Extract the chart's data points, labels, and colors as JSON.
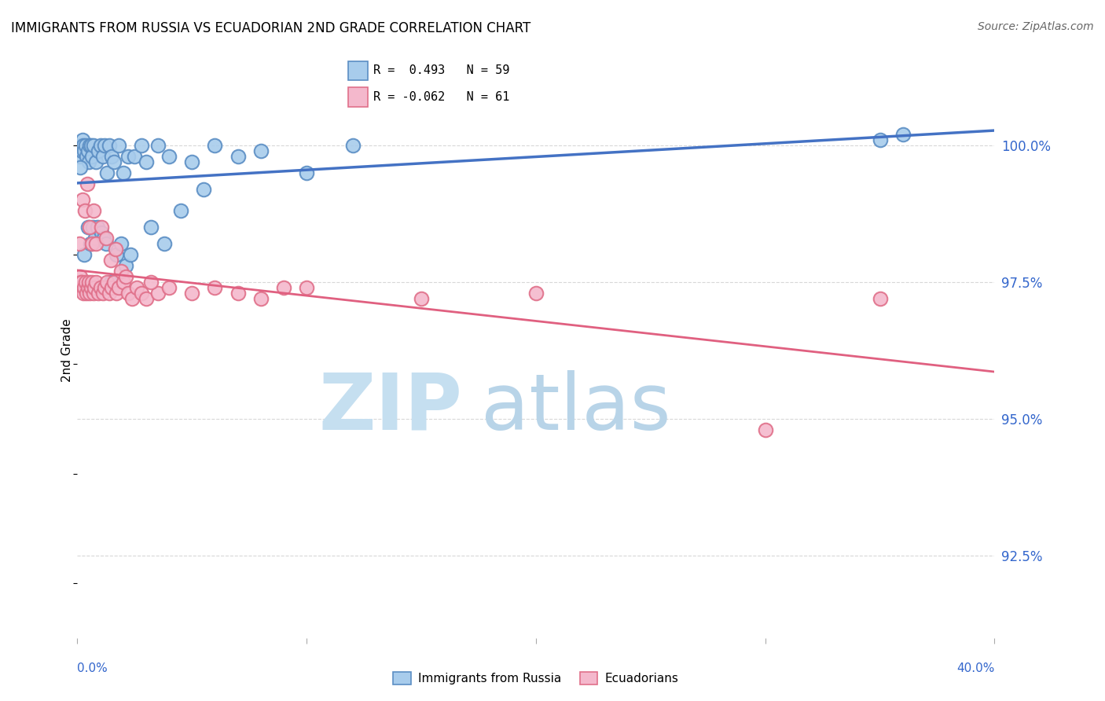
{
  "title": "IMMIGRANTS FROM RUSSIA VS ECUADORIAN 2ND GRADE CORRELATION CHART",
  "source": "Source: ZipAtlas.com",
  "ylabel": "2nd Grade",
  "xlim": [
    0.0,
    40.0
  ],
  "ylim": [
    91.0,
    101.5
  ],
  "yticks": [
    92.5,
    95.0,
    97.5,
    100.0
  ],
  "ytick_labels": [
    "92.5%",
    "95.0%",
    "97.5%",
    "100.0%"
  ],
  "russia_color": "#a8ccec",
  "ecuador_color": "#f4b8cc",
  "russia_edge_color": "#5b8ec4",
  "ecuador_edge_color": "#e0708a",
  "russia_line_color": "#4472c4",
  "ecuador_line_color": "#e06080",
  "legend_r_russia": "R =  0.493",
  "legend_n_russia": "N = 59",
  "legend_r_ecuador": "R = -0.062",
  "legend_n_ecuador": "N = 61",
  "russia_x": [
    0.1,
    0.15,
    0.18,
    0.2,
    0.22,
    0.25,
    0.3,
    0.35,
    0.4,
    0.45,
    0.5,
    0.55,
    0.6,
    0.65,
    0.7,
    0.8,
    0.9,
    1.0,
    1.1,
    1.2,
    1.3,
    1.4,
    1.5,
    1.6,
    1.8,
    2.0,
    2.2,
    2.5,
    2.8,
    3.0,
    3.5,
    4.0,
    5.0,
    6.0,
    7.0,
    8.0,
    12.0,
    35.0,
    36.0,
    0.12,
    0.28,
    0.48,
    0.58,
    0.68,
    0.78,
    0.88,
    1.05,
    1.15,
    1.25,
    1.45,
    1.7,
    1.9,
    2.1,
    2.3,
    3.2,
    3.8,
    4.5,
    5.5,
    10.0
  ],
  "russia_y": [
    99.8,
    100.0,
    99.9,
    100.0,
    100.1,
    100.0,
    99.9,
    100.0,
    99.8,
    99.9,
    99.7,
    100.0,
    100.0,
    99.8,
    100.0,
    99.7,
    99.9,
    100.0,
    99.8,
    100.0,
    99.5,
    100.0,
    99.8,
    99.7,
    100.0,
    99.5,
    99.8,
    99.8,
    100.0,
    99.7,
    100.0,
    99.8,
    99.7,
    100.0,
    99.8,
    99.9,
    100.0,
    100.1,
    100.2,
    99.6,
    98.0,
    98.5,
    98.2,
    98.5,
    98.3,
    98.5,
    98.4,
    98.3,
    98.2,
    97.5,
    98.0,
    98.2,
    97.8,
    98.0,
    98.5,
    98.2,
    98.8,
    99.2,
    99.5
  ],
  "ecuador_x": [
    0.05,
    0.1,
    0.12,
    0.15,
    0.18,
    0.2,
    0.25,
    0.3,
    0.35,
    0.4,
    0.45,
    0.5,
    0.55,
    0.6,
    0.65,
    0.7,
    0.75,
    0.8,
    0.9,
    1.0,
    1.1,
    1.2,
    1.3,
    1.4,
    1.5,
    1.6,
    1.7,
    1.8,
    2.0,
    2.2,
    2.4,
    2.6,
    2.8,
    3.0,
    3.5,
    4.0,
    5.0,
    6.0,
    7.0,
    8.0,
    10.0,
    15.0,
    20.0,
    35.0,
    0.08,
    0.22,
    0.32,
    0.42,
    0.52,
    0.62,
    0.72,
    0.82,
    1.05,
    1.25,
    1.45,
    1.65,
    1.9,
    2.1,
    3.2,
    9.0,
    30.0
  ],
  "ecuador_y": [
    97.5,
    97.4,
    97.6,
    97.5,
    97.4,
    97.5,
    97.3,
    97.4,
    97.5,
    97.3,
    97.4,
    97.5,
    97.3,
    97.4,
    97.5,
    97.3,
    97.4,
    97.5,
    97.3,
    97.4,
    97.3,
    97.4,
    97.5,
    97.3,
    97.4,
    97.5,
    97.3,
    97.4,
    97.5,
    97.3,
    97.2,
    97.4,
    97.3,
    97.2,
    97.3,
    97.4,
    97.3,
    97.4,
    97.3,
    97.2,
    97.4,
    97.2,
    97.3,
    97.2,
    98.2,
    99.0,
    98.8,
    99.3,
    98.5,
    98.2,
    98.8,
    98.2,
    98.5,
    98.3,
    97.9,
    98.1,
    97.7,
    97.6,
    97.5,
    97.4,
    94.8
  ],
  "background_color": "#ffffff",
  "grid_color": "#d8d8d8",
  "watermark_zip_color": "#c5dff0",
  "watermark_atlas_color": "#b8d4e8"
}
